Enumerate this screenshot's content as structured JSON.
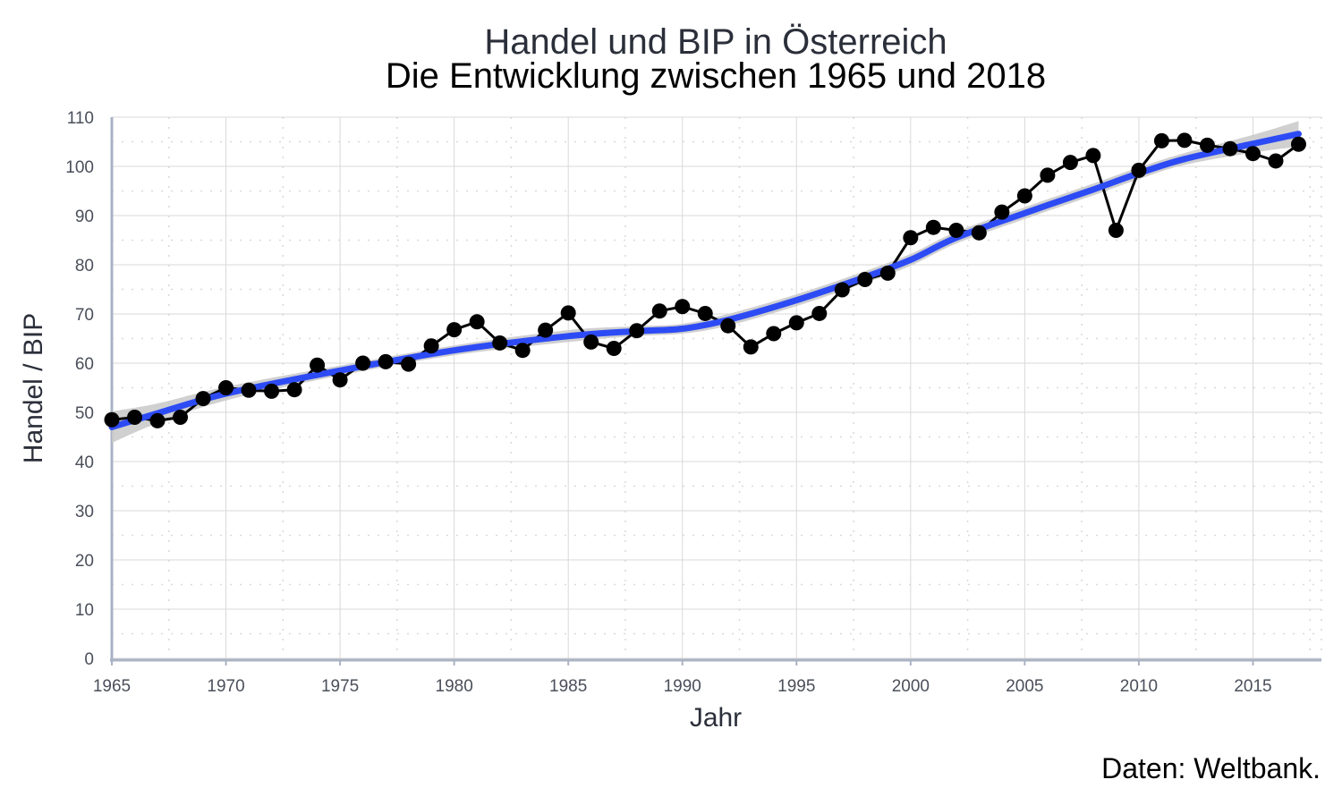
{
  "chart_data": {
    "type": "line",
    "title": "Handel und BIP in Österreich",
    "subtitle": "Die Entwicklung zwischen 1965 und 2018",
    "xlabel": "Jahr",
    "ylabel": "Handel / BIP",
    "caption": "Daten: Weltbank.",
    "xlim": [
      1965,
      2018
    ],
    "ylim": [
      0,
      110
    ],
    "xticks": [
      1965,
      1970,
      1975,
      1980,
      1985,
      1990,
      1995,
      2000,
      2005,
      2010,
      2015
    ],
    "yticks": [
      0,
      10,
      20,
      30,
      40,
      50,
      60,
      70,
      80,
      90,
      100,
      110
    ],
    "grid": true,
    "colors": {
      "points": "#000000",
      "trend": "#2d4bf5",
      "band": "#c8c8c8",
      "axis": "#aab3c4",
      "grid": "#d9d9d9"
    },
    "series": [
      {
        "x": [
          1965,
          1966,
          1967,
          1968,
          1969,
          1970,
          1971,
          1972,
          1973,
          1974,
          1975,
          1976,
          1977,
          1978,
          1979,
          1980,
          1981,
          1982,
          1983,
          1984,
          1985,
          1986,
          1987,
          1988,
          1989,
          1990,
          1991,
          1992,
          1993,
          1994,
          1995,
          1996,
          1997,
          1998,
          1999,
          2000,
          2001,
          2002,
          2003,
          2004,
          2005,
          2006,
          2007,
          2008,
          2009,
          2010,
          2011,
          2012,
          2013,
          2014,
          2015,
          2016,
          2017
        ],
        "values": [
          48.5,
          49.0,
          48.3,
          49.0,
          52.8,
          55.0,
          54.5,
          54.3,
          54.6,
          59.6,
          56.6,
          60.0,
          60.3,
          59.8,
          63.5,
          66.8,
          68.4,
          64.1,
          62.6,
          66.7,
          70.2,
          64.3,
          63.0,
          66.6,
          70.6,
          71.5,
          70.1,
          67.6,
          63.3,
          66.0,
          68.2,
          70.1,
          74.9,
          77.0,
          78.3,
          85.5,
          87.6,
          87.0,
          86.5,
          90.7,
          94.0,
          98.2,
          100.8,
          102.2,
          87.0,
          99.2,
          105.2,
          105.3,
          104.3,
          103.6,
          102.6,
          101.1,
          104.5
        ]
      }
    ],
    "trend": {
      "x": [
        1965,
        1967,
        1970,
        1975,
        1980,
        1985,
        1988,
        1990,
        1992,
        1995,
        1998,
        2000,
        2002,
        2005,
        2008,
        2010,
        2012,
        2015,
        2017
      ],
      "values": [
        47.0,
        49.8,
        53.8,
        58.5,
        62.6,
        65.5,
        66.5,
        67.0,
        68.8,
        72.8,
        77.5,
        81.0,
        85.5,
        90.5,
        95.3,
        98.6,
        101.5,
        104.6,
        106.6
      ],
      "lower": [
        43.8,
        47.8,
        52.4,
        57.5,
        61.6,
        64.3,
        65.5,
        66.0,
        67.6,
        71.6,
        76.3,
        79.8,
        84.3,
        89.3,
        94.1,
        97.4,
        100.3,
        102.8,
        104.0
      ],
      "upper": [
        50.2,
        51.8,
        55.2,
        59.5,
        63.6,
        66.7,
        67.5,
        68.0,
        70.0,
        74.0,
        78.7,
        82.2,
        86.7,
        91.7,
        96.5,
        99.8,
        102.7,
        106.4,
        109.2
      ]
    }
  }
}
